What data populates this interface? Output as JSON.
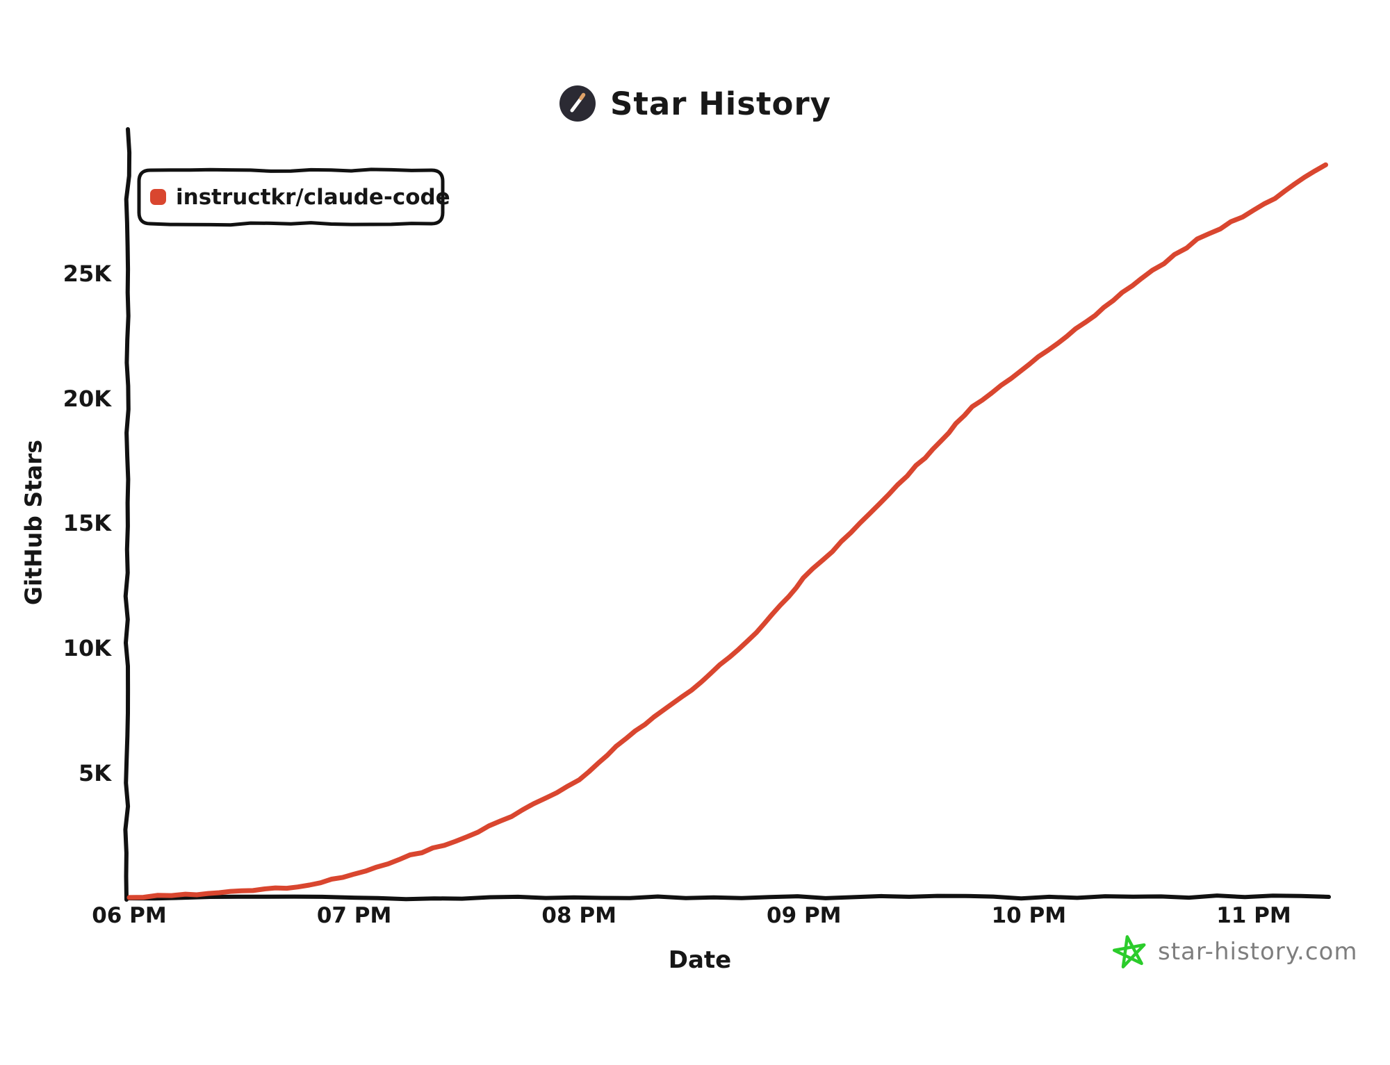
{
  "header": {
    "title": "Star History",
    "logo_icon": "pen-in-dark-circle"
  },
  "legend": {
    "label": "instructkr/claude-code",
    "marker_color": "#d9462f"
  },
  "watermark": {
    "text": "star-history.com",
    "icon": "green-star",
    "text_color": "#7e7e7e",
    "star_color": "#2bcc2b"
  },
  "colors": {
    "axis": "#111111",
    "series": "#d9462f",
    "title": "#181818"
  },
  "chart_data": {
    "type": "line",
    "title": "Star History",
    "xlabel": "Date",
    "ylabel": "GitHub Stars",
    "grid": false,
    "legend_position": "top-left",
    "xlim": [
      18.0,
      23.34
    ],
    "ylim": [
      0,
      30800
    ],
    "x_ticks": [
      {
        "value": 18,
        "label": "06 PM"
      },
      {
        "value": 19,
        "label": "07 PM"
      },
      {
        "value": 20,
        "label": "08 PM"
      },
      {
        "value": 21,
        "label": "09 PM"
      },
      {
        "value": 22,
        "label": "10 PM"
      },
      {
        "value": 23,
        "label": "11 PM"
      }
    ],
    "y_ticks": [
      {
        "value": 5000,
        "label": "5K"
      },
      {
        "value": 10000,
        "label": "10K"
      },
      {
        "value": 15000,
        "label": "15K"
      },
      {
        "value": 20000,
        "label": "20K"
      },
      {
        "value": 25000,
        "label": "25K"
      }
    ],
    "series": [
      {
        "name": "instructkr/claude-code",
        "color": "#d9462f",
        "x_hours": [
          18.0,
          18.25,
          18.5,
          18.75,
          19.0,
          19.25,
          19.5,
          19.75,
          20.0,
          20.25,
          20.5,
          20.75,
          21.0,
          21.25,
          21.5,
          21.75,
          22.0,
          22.25,
          22.5,
          22.75,
          23.0,
          23.32
        ],
        "stars": [
          30,
          130,
          280,
          450,
          950,
          1700,
          2450,
          3500,
          4750,
          6700,
          8350,
          10300,
          12800,
          15000,
          17300,
          19650,
          21400,
          23050,
          24800,
          26350,
          27500,
          29350
        ]
      }
    ]
  }
}
